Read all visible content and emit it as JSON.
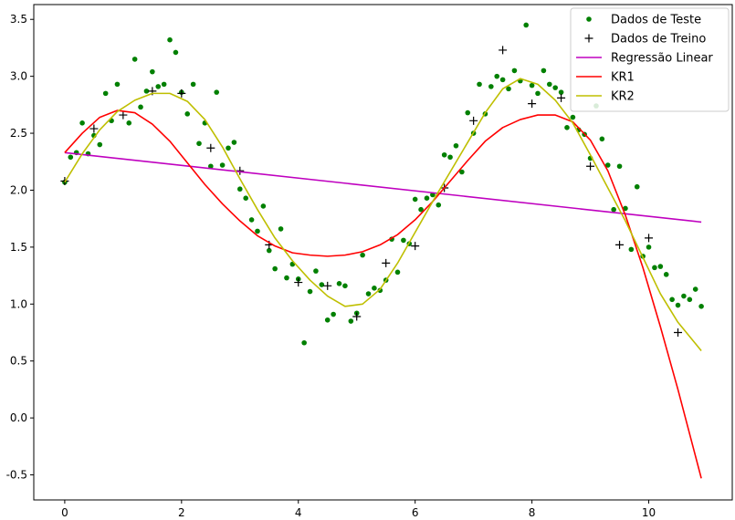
{
  "chart_data": {
    "type": "line",
    "title": "",
    "xlabel": "",
    "ylabel": "",
    "xlim": [
      -0.53,
      11.43
    ],
    "ylim": [
      -0.72,
      3.63
    ],
    "xticks": [
      0,
      2,
      4,
      6,
      8,
      10
    ],
    "yticks": [
      -0.5,
      0.0,
      0.5,
      1.0,
      1.5,
      2.0,
      2.5,
      3.0,
      3.5
    ],
    "grid": false,
    "legend_position": "top-right",
    "series": [
      {
        "name": "Dados de Teste",
        "kind": "scatter",
        "marker": "dot",
        "color": "#008000",
        "points": [
          [
            0.0,
            2.07
          ],
          [
            0.1,
            2.29
          ],
          [
            0.2,
            2.33
          ],
          [
            0.3,
            2.59
          ],
          [
            0.4,
            2.32
          ],
          [
            0.5,
            2.48
          ],
          [
            0.6,
            2.4
          ],
          [
            0.7,
            2.85
          ],
          [
            0.8,
            2.61
          ],
          [
            0.9,
            2.93
          ],
          [
            1.1,
            2.59
          ],
          [
            1.2,
            3.15
          ],
          [
            1.3,
            2.73
          ],
          [
            1.4,
            2.87
          ],
          [
            1.5,
            3.04
          ],
          [
            1.6,
            2.91
          ],
          [
            1.7,
            2.93
          ],
          [
            1.8,
            3.32
          ],
          [
            1.9,
            3.21
          ],
          [
            2.0,
            2.86
          ],
          [
            2.1,
            2.67
          ],
          [
            2.2,
            2.93
          ],
          [
            2.3,
            2.41
          ],
          [
            2.4,
            2.59
          ],
          [
            2.5,
            2.21
          ],
          [
            2.6,
            2.86
          ],
          [
            2.7,
            2.22
          ],
          [
            2.8,
            2.37
          ],
          [
            2.9,
            2.42
          ],
          [
            3.0,
            2.01
          ],
          [
            3.1,
            1.93
          ],
          [
            3.2,
            1.74
          ],
          [
            3.3,
            1.64
          ],
          [
            3.4,
            1.86
          ],
          [
            3.5,
            1.47
          ],
          [
            3.6,
            1.31
          ],
          [
            3.7,
            1.66
          ],
          [
            3.8,
            1.23
          ],
          [
            3.9,
            1.35
          ],
          [
            4.0,
            1.22
          ],
          [
            4.1,
            0.66
          ],
          [
            4.2,
            1.11
          ],
          [
            4.3,
            1.29
          ],
          [
            4.4,
            1.17
          ],
          [
            4.5,
            0.86
          ],
          [
            4.6,
            0.91
          ],
          [
            4.7,
            1.18
          ],
          [
            4.8,
            1.16
          ],
          [
            4.9,
            0.85
          ],
          [
            5.0,
            0.92
          ],
          [
            5.1,
            1.43
          ],
          [
            5.2,
            1.09
          ],
          [
            5.3,
            1.14
          ],
          [
            5.4,
            1.12
          ],
          [
            5.5,
            1.21
          ],
          [
            5.6,
            1.57
          ],
          [
            5.7,
            1.28
          ],
          [
            5.8,
            1.56
          ],
          [
            5.9,
            1.53
          ],
          [
            6.0,
            1.92
          ],
          [
            6.1,
            1.83
          ],
          [
            6.2,
            1.93
          ],
          [
            6.3,
            1.96
          ],
          [
            6.4,
            1.87
          ],
          [
            6.5,
            2.31
          ],
          [
            6.6,
            2.29
          ],
          [
            6.7,
            2.39
          ],
          [
            6.8,
            2.16
          ],
          [
            6.9,
            2.68
          ],
          [
            7.0,
            2.5
          ],
          [
            7.1,
            2.93
          ],
          [
            7.2,
            2.67
          ],
          [
            7.3,
            2.91
          ],
          [
            7.4,
            3.0
          ],
          [
            7.5,
            2.97
          ],
          [
            7.6,
            2.89
          ],
          [
            7.7,
            3.05
          ],
          [
            7.8,
            2.96
          ],
          [
            7.9,
            3.45
          ],
          [
            8.0,
            2.92
          ],
          [
            8.1,
            2.85
          ],
          [
            8.2,
            3.05
          ],
          [
            8.3,
            2.93
          ],
          [
            8.4,
            2.9
          ],
          [
            8.5,
            2.86
          ],
          [
            8.6,
            2.55
          ],
          [
            8.7,
            2.64
          ],
          [
            8.8,
            2.53
          ],
          [
            8.9,
            2.49
          ],
          [
            9.0,
            2.28
          ],
          [
            9.1,
            2.74
          ],
          [
            9.2,
            2.45
          ],
          [
            9.3,
            2.22
          ],
          [
            9.4,
            1.83
          ],
          [
            9.5,
            2.21
          ],
          [
            9.6,
            1.84
          ],
          [
            9.7,
            1.48
          ],
          [
            9.8,
            2.03
          ],
          [
            9.9,
            1.42
          ],
          [
            10.0,
            1.5
          ],
          [
            10.1,
            1.32
          ],
          [
            10.2,
            1.33
          ],
          [
            10.3,
            1.26
          ],
          [
            10.4,
            1.04
          ],
          [
            10.5,
            0.99
          ],
          [
            10.6,
            1.07
          ],
          [
            10.7,
            1.04
          ],
          [
            10.8,
            1.13
          ],
          [
            10.9,
            0.98
          ]
        ]
      },
      {
        "name": "Dados de Treino",
        "kind": "scatter",
        "marker": "plus",
        "color": "#000000",
        "points": [
          [
            0.0,
            2.08
          ],
          [
            0.5,
            2.54
          ],
          [
            1.0,
            2.66
          ],
          [
            1.5,
            2.87
          ],
          [
            2.0,
            2.85
          ],
          [
            2.5,
            2.37
          ],
          [
            3.0,
            2.17
          ],
          [
            3.5,
            1.52
          ],
          [
            4.0,
            1.19
          ],
          [
            4.5,
            1.16
          ],
          [
            5.0,
            0.89
          ],
          [
            5.5,
            1.36
          ],
          [
            6.0,
            1.51
          ],
          [
            6.5,
            2.02
          ],
          [
            7.0,
            2.61
          ],
          [
            7.5,
            3.23
          ],
          [
            8.0,
            2.76
          ],
          [
            8.5,
            2.81
          ],
          [
            9.0,
            2.21
          ],
          [
            9.5,
            1.52
          ],
          [
            10.0,
            1.58
          ],
          [
            10.5,
            0.75
          ]
        ]
      },
      {
        "name": "Regressão Linear",
        "kind": "line",
        "color": "#bf00bf",
        "points": [
          [
            0.0,
            2.33
          ],
          [
            10.9,
            1.72
          ]
        ]
      },
      {
        "name": "KR1",
        "kind": "line",
        "color": "#ff0000",
        "points": [
          [
            0.0,
            2.33
          ],
          [
            0.3,
            2.5
          ],
          [
            0.6,
            2.64
          ],
          [
            0.9,
            2.7
          ],
          [
            1.2,
            2.68
          ],
          [
            1.5,
            2.58
          ],
          [
            1.8,
            2.43
          ],
          [
            2.1,
            2.24
          ],
          [
            2.4,
            2.05
          ],
          [
            2.7,
            1.88
          ],
          [
            3.0,
            1.73
          ],
          [
            3.3,
            1.6
          ],
          [
            3.6,
            1.51
          ],
          [
            3.9,
            1.45
          ],
          [
            4.2,
            1.43
          ],
          [
            4.5,
            1.42
          ],
          [
            4.8,
            1.43
          ],
          [
            5.1,
            1.46
          ],
          [
            5.4,
            1.52
          ],
          [
            5.7,
            1.61
          ],
          [
            6.0,
            1.74
          ],
          [
            6.3,
            1.9
          ],
          [
            6.6,
            2.08
          ],
          [
            6.9,
            2.26
          ],
          [
            7.2,
            2.43
          ],
          [
            7.5,
            2.55
          ],
          [
            7.8,
            2.62
          ],
          [
            8.1,
            2.66
          ],
          [
            8.4,
            2.66
          ],
          [
            8.7,
            2.6
          ],
          [
            9.0,
            2.44
          ],
          [
            9.3,
            2.17
          ],
          [
            9.6,
            1.78
          ],
          [
            9.9,
            1.32
          ],
          [
            10.2,
            0.8
          ],
          [
            10.5,
            0.25
          ],
          [
            10.9,
            -0.53
          ]
        ]
      },
      {
        "name": "KR2",
        "kind": "line",
        "color": "#bfbf00",
        "points": [
          [
            0.0,
            2.07
          ],
          [
            0.3,
            2.32
          ],
          [
            0.6,
            2.53
          ],
          [
            0.9,
            2.69
          ],
          [
            1.2,
            2.79
          ],
          [
            1.5,
            2.85
          ],
          [
            1.8,
            2.85
          ],
          [
            2.1,
            2.78
          ],
          [
            2.4,
            2.62
          ],
          [
            2.7,
            2.38
          ],
          [
            3.0,
            2.1
          ],
          [
            3.3,
            1.83
          ],
          [
            3.6,
            1.58
          ],
          [
            3.9,
            1.38
          ],
          [
            4.2,
            1.21
          ],
          [
            4.5,
            1.07
          ],
          [
            4.8,
            0.98
          ],
          [
            5.1,
            1.0
          ],
          [
            5.4,
            1.13
          ],
          [
            5.7,
            1.36
          ],
          [
            6.0,
            1.63
          ],
          [
            6.3,
            1.9
          ],
          [
            6.6,
            2.16
          ],
          [
            6.9,
            2.42
          ],
          [
            7.2,
            2.68
          ],
          [
            7.5,
            2.89
          ],
          [
            7.8,
            2.98
          ],
          [
            8.1,
            2.93
          ],
          [
            8.4,
            2.79
          ],
          [
            8.7,
            2.59
          ],
          [
            9.0,
            2.31
          ],
          [
            9.3,
            2.02
          ],
          [
            9.6,
            1.73
          ],
          [
            9.9,
            1.41
          ],
          [
            10.2,
            1.09
          ],
          [
            10.5,
            0.84
          ],
          [
            10.9,
            0.59
          ]
        ]
      }
    ]
  }
}
